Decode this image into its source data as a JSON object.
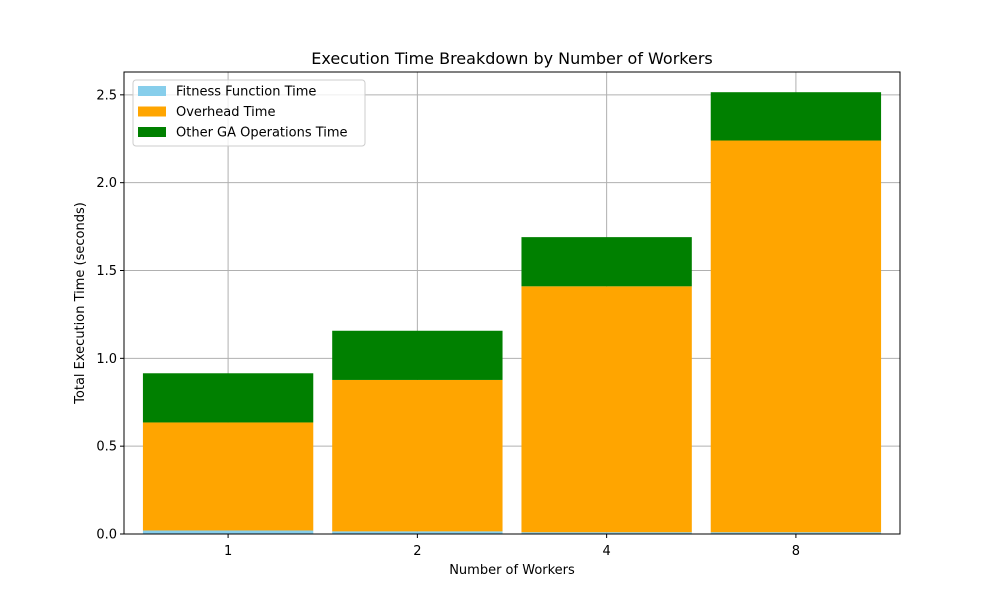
{
  "chart_data": {
    "type": "bar",
    "stacked": true,
    "title": "Execution Time Breakdown by Number of Workers",
    "xlabel": "Number of Workers",
    "ylabel": "Total Execution Time (seconds)",
    "categories": [
      "1",
      "2",
      "4",
      "8"
    ],
    "ylim": [
      0,
      2.63
    ],
    "yticks": [
      0.0,
      0.5,
      1.0,
      1.5,
      2.0,
      2.5
    ],
    "ytick_labels": [
      "0.0",
      "0.5",
      "1.0",
      "1.5",
      "2.0",
      "2.5"
    ],
    "grid": true,
    "legend_position": "top-left",
    "series": [
      {
        "name": "Fitness Function Time",
        "color": "#87ceeb",
        "values": [
          0.02,
          0.015,
          0.01,
          0.01
        ]
      },
      {
        "name": "Overhead Time",
        "color": "#ffa500",
        "values": [
          0.615,
          0.862,
          1.4,
          2.23
        ]
      },
      {
        "name": "Other GA Operations Time",
        "color": "#008000",
        "values": [
          0.28,
          0.28,
          0.28,
          0.275
        ]
      }
    ]
  }
}
